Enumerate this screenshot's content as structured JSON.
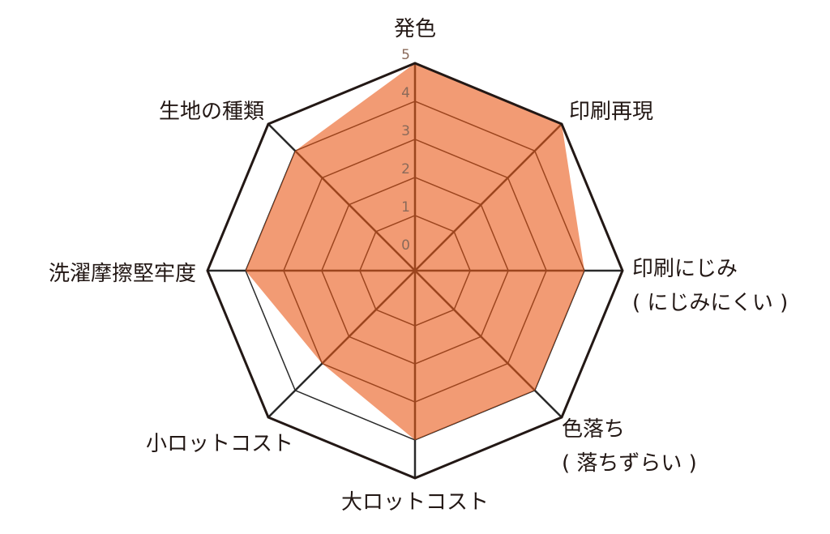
{
  "chart_data": {
    "type": "radar",
    "axes": [
      {
        "label": [
          "発色"
        ],
        "value": 5
      },
      {
        "label": [
          "印刷再現"
        ],
        "value": 5
      },
      {
        "label": [
          "印刷にじみ",
          "( にじみにくい )"
        ],
        "value": 4
      },
      {
        "label": [
          "色落ち",
          "( 落ちずらい )"
        ],
        "value": 4
      },
      {
        "label": [
          "大ロットコスト"
        ],
        "value": 4
      },
      {
        "label": [
          "小ロットコスト"
        ],
        "value": 3
      },
      {
        "label": [
          "洗濯摩擦堅牢度"
        ],
        "value": 4
      },
      {
        "label": [
          "生地の種類"
        ],
        "value": 4
      }
    ],
    "ticks": [
      "0",
      "1",
      "2",
      "3",
      "4",
      "5"
    ],
    "range": [
      0,
      5
    ],
    "grid": true,
    "colors": {
      "fill": "#f29b74",
      "outline": "#231815"
    }
  }
}
